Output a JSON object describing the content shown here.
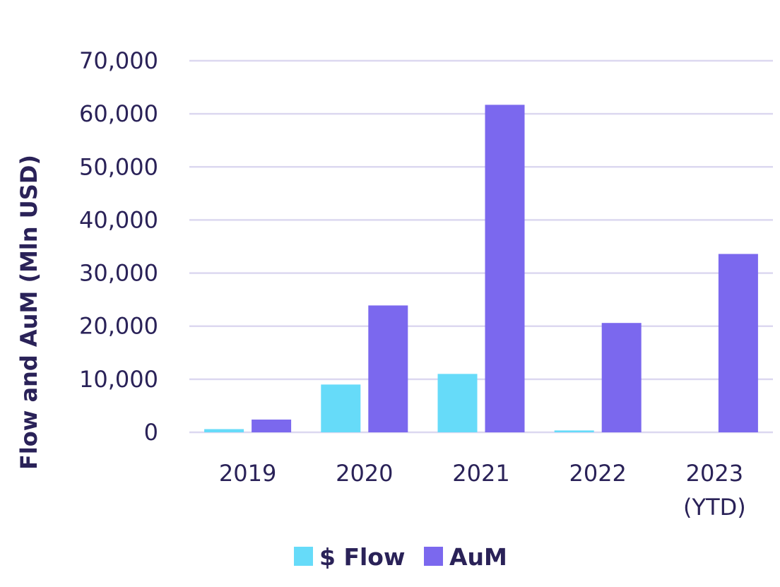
{
  "chart_data": {
    "type": "bar",
    "categories": [
      "2019",
      "2020",
      "2021",
      "2022",
      "2023\n(YTD)"
    ],
    "series": [
      {
        "name": "$ Flow",
        "values": [
          600,
          9000,
          11000,
          350,
          0
        ],
        "color": "#66dbf9"
      },
      {
        "name": "AuM",
        "values": [
          2400,
          23900,
          61700,
          20600,
          33600
        ],
        "color": "#7b68ee"
      }
    ],
    "title": "",
    "xlabel": "",
    "ylabel": "Flow and AuM (Mln USD)",
    "ylim": [
      0,
      70000
    ],
    "yticks": [
      0,
      10000,
      20000,
      30000,
      40000,
      50000,
      60000,
      70000
    ],
    "ytick_labels": [
      "0",
      "10,000",
      "20,000",
      "30,000",
      "40,000",
      "50,000",
      "60,000",
      "70,000"
    ],
    "grid": true,
    "legend": {
      "placement": "bottom-center"
    },
    "colors": {
      "grid": "#dcd8f0",
      "text": "#2a2258"
    }
  }
}
